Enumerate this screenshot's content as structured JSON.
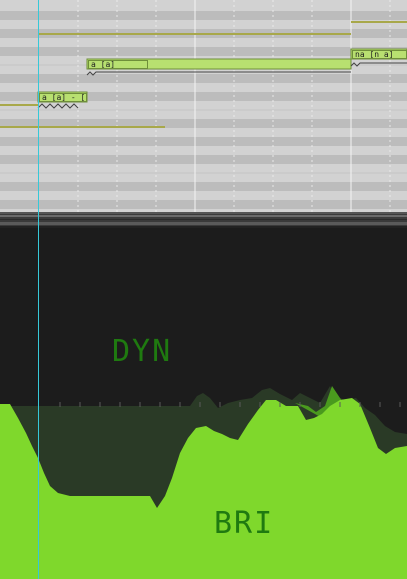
{
  "piano_roll": {
    "notes": [
      {
        "lyric": "a [a]",
        "phoneme_box": "a [a]"
      },
      {
        "lyric": "a [a] - [",
        "phoneme_box": "a [a] - ["
      },
      {
        "lyric": "na [n a]",
        "phoneme_box": "na [n a]"
      }
    ]
  },
  "parameters": {
    "upper_label": "DYN",
    "lower_label": "BRI"
  },
  "colors": {
    "note_fill": "#b8e070",
    "parameter_fill": "#7fd82c",
    "playhead": "#36c8d8",
    "label": "#1f7a10"
  }
}
